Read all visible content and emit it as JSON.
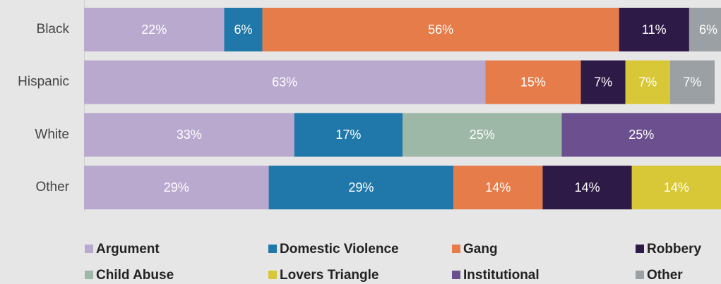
{
  "chart_data": {
    "type": "stacked-barh",
    "categories": [
      "Black",
      "Hispanic",
      "White",
      "Other"
    ],
    "xlim": [
      0,
      100
    ],
    "legend": "bottom",
    "series": [
      {
        "name": "Argument",
        "color": "#b9a9cf",
        "values": [
          22,
          63,
          33,
          29
        ],
        "value_labels": [
          "22%",
          "63%",
          "33%",
          "29%"
        ]
      },
      {
        "name": "Domestic Violence",
        "color": "#1f78a9",
        "values": [
          6,
          null,
          17,
          29
        ],
        "value_labels": [
          "6%",
          null,
          "17%",
          "29%"
        ]
      },
      {
        "name": "Gang",
        "color": "#e57c4a",
        "values": [
          56,
          15,
          null,
          14
        ],
        "value_labels": [
          "56%",
          "15%",
          null,
          "14%"
        ]
      },
      {
        "name": "Robbery",
        "color": "#2e1a47",
        "values": [
          11,
          7,
          null,
          14
        ],
        "value_labels": [
          "11%",
          "7%",
          null,
          "14%"
        ]
      },
      {
        "name": "Child Abuse",
        "color": "#9db8a6",
        "values": [
          null,
          null,
          25,
          null
        ],
        "value_labels": [
          null,
          null,
          "25%",
          null
        ]
      },
      {
        "name": "Lovers Triangle",
        "color": "#d8c736",
        "values": [
          null,
          7,
          null,
          14
        ],
        "value_labels": [
          null,
          "7%",
          null,
          "14%"
        ]
      },
      {
        "name": "Institutional",
        "color": "#6b4f8f",
        "values": [
          null,
          null,
          25,
          null
        ],
        "value_labels": [
          null,
          null,
          "25%",
          null
        ]
      },
      {
        "name": "Other",
        "color": "#9aa0a3",
        "values": [
          6,
          7,
          null,
          null
        ],
        "value_labels": [
          "6%",
          "7%",
          null,
          null
        ]
      }
    ]
  }
}
